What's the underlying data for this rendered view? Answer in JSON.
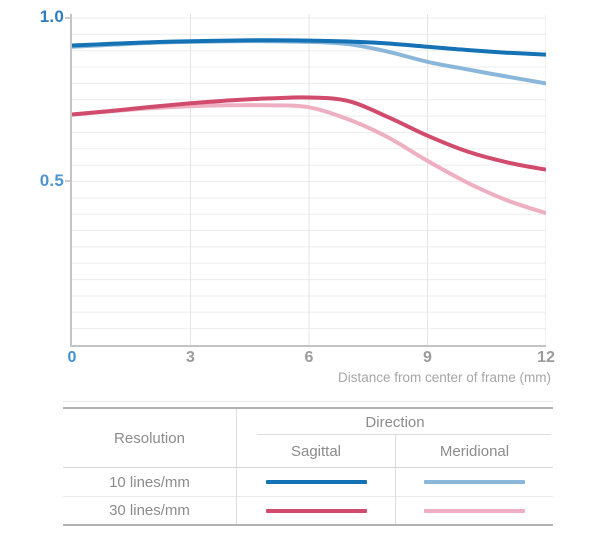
{
  "chart_data": {
    "type": "line",
    "title": "",
    "xlabel": "Distance from center of frame (mm)",
    "ylabel": "",
    "xlim": [
      0,
      12
    ],
    "ylim": [
      0,
      1.0
    ],
    "grid": true,
    "y_grid_step": 0.05,
    "x_grid_values": [
      3,
      6,
      9,
      12
    ],
    "x_ticks": [
      {
        "label": "0",
        "value": 0,
        "color": "#4190cf"
      },
      {
        "label": "3",
        "value": 3,
        "color": "#9b9b9b"
      },
      {
        "label": "6",
        "value": 6,
        "color": "#9b9b9b"
      },
      {
        "label": "9",
        "value": 9,
        "color": "#9b9b9b"
      },
      {
        "label": "12",
        "value": 12,
        "color": "#9b9b9b"
      }
    ],
    "y_ticks": [
      {
        "label": "1.0",
        "value": 1.0,
        "color": "#2f7cbe"
      },
      {
        "label": "0.5",
        "value": 0.5,
        "color": "#4e95d1"
      }
    ],
    "x": [
      0,
      1,
      2,
      3,
      4,
      5,
      6,
      7,
      8,
      9,
      10,
      11,
      12
    ],
    "series": [
      {
        "name": "10 lines/mm Sagittal",
        "color": "#1572b5",
        "z": 2,
        "values": [
          0.916,
          0.921,
          0.926,
          0.929,
          0.931,
          0.932,
          0.931,
          0.928,
          0.922,
          0.912,
          0.902,
          0.894,
          0.888
        ]
      },
      {
        "name": "10 lines/mm Meridional",
        "color": "#8ab7d9",
        "z": 1,
        "values": [
          0.912,
          0.918,
          0.924,
          0.927,
          0.929,
          0.929,
          0.927,
          0.92,
          0.897,
          0.866,
          0.843,
          0.821,
          0.8
        ]
      },
      {
        "name": "30 lines/mm Sagittal",
        "color": "#d14b6d",
        "z": 2,
        "values": [
          0.705,
          0.716,
          0.728,
          0.739,
          0.748,
          0.754,
          0.757,
          0.746,
          0.697,
          0.64,
          0.592,
          0.559,
          0.536
        ]
      },
      {
        "name": "30 lines/mm Meridional",
        "color": "#eeafc0",
        "z": 1,
        "values": [
          0.705,
          0.715,
          0.724,
          0.73,
          0.733,
          0.733,
          0.727,
          0.69,
          0.635,
          0.563,
          0.497,
          0.443,
          0.403
        ]
      }
    ],
    "legend_position": "bottom-table"
  },
  "axis": {
    "x_title": "Distance from center of frame (mm)"
  },
  "legend_table": {
    "resolution_header": "Resolution",
    "direction_header": "Direction",
    "sagittal_header": "Sagittal",
    "meridional_header": "Meridional",
    "rows": [
      {
        "label": "10 lines/mm",
        "sagittal_color": "#1572b5",
        "meridional_color": "#8ab7d9"
      },
      {
        "label": "30 lines/mm",
        "sagittal_color": "#d14b6d",
        "meridional_color": "#eeafc0"
      }
    ]
  },
  "colors": {
    "grid_horizontal": "#ededed",
    "grid_vertical": "#e4e4e4",
    "axis_line": "#c5c5c5"
  }
}
